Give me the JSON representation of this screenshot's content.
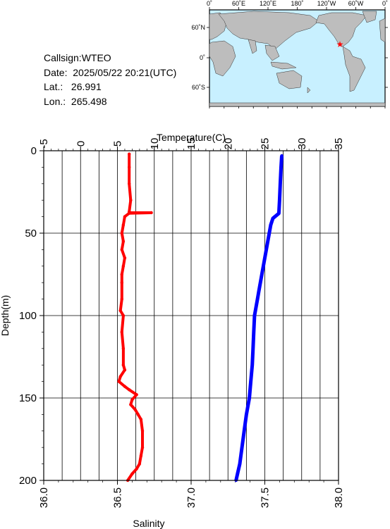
{
  "info": {
    "callsign": "Callsign:WTEO",
    "date_label": "Date:",
    "date_value": "2025/05/22 20:21(UTC)",
    "lat_label": "Lat.:",
    "lat_value": "26.991",
    "lon_label": "Lon.:",
    "lon_value": "265.498"
  },
  "map": {
    "top_labels": [
      "0˚",
      "60˚E",
      "120˚E",
      "180˚",
      "120˚W",
      "60˚W",
      "0˚"
    ],
    "left_labels": [
      "60˚N",
      "0˚",
      "60˚S"
    ],
    "ocean_color": "#c8f0ff",
    "land_color": "#bdbdbd",
    "marker_color": "#ff0000",
    "marker": "star-icon"
  },
  "chart_data": {
    "type": "line",
    "top_axis": {
      "label": "Temperature(C)",
      "range": [
        -5,
        35
      ],
      "ticks": [
        "-5",
        "0",
        "5",
        "10",
        "15",
        "20",
        "25",
        "30",
        "35"
      ]
    },
    "bottom_axis": {
      "label": "Salinity",
      "range": [
        36.0,
        38.0
      ],
      "ticks": [
        "36.0",
        "36.5",
        "37.0",
        "37.5",
        "38.0"
      ]
    },
    "left_axis": {
      "label": "Depth(m)",
      "range": [
        0,
        200
      ],
      "inverted": true,
      "ticks": [
        "0",
        "50",
        "100",
        "150",
        "200"
      ]
    },
    "grid": true,
    "series": [
      {
        "key": "temperature",
        "color": "#0000ff",
        "axis": "top",
        "points": [
          [
            27.3,
            3
          ],
          [
            27.2,
            10
          ],
          [
            27.1,
            20
          ],
          [
            27.0,
            30
          ],
          [
            26.9,
            38
          ],
          [
            26.1,
            41
          ],
          [
            25.8,
            45
          ],
          [
            25.6,
            50
          ],
          [
            25.4,
            55
          ],
          [
            25.2,
            60
          ],
          [
            25.0,
            65
          ],
          [
            24.8,
            70
          ],
          [
            24.6,
            75
          ],
          [
            24.4,
            80
          ],
          [
            24.2,
            85
          ],
          [
            24.0,
            90
          ],
          [
            23.8,
            95
          ],
          [
            23.6,
            100
          ],
          [
            23.5,
            110
          ],
          [
            23.4,
            120
          ],
          [
            23.3,
            130
          ],
          [
            23.1,
            140
          ],
          [
            22.9,
            150
          ],
          [
            22.7,
            155
          ],
          [
            22.5,
            160
          ],
          [
            22.2,
            170
          ],
          [
            21.9,
            180
          ],
          [
            21.6,
            190
          ],
          [
            21.3,
            196
          ],
          [
            21.1,
            200
          ]
        ]
      },
      {
        "key": "salinity",
        "color": "#ff0000",
        "axis": "bottom",
        "points": [
          [
            36.58,
            2
          ],
          [
            36.58,
            10
          ],
          [
            36.58,
            20
          ],
          [
            36.59,
            30
          ],
          [
            36.58,
            37
          ],
          [
            36.58,
            37.6
          ],
          [
            36.73,
            37.6
          ],
          [
            36.58,
            37.9
          ],
          [
            36.55,
            40
          ],
          [
            36.54,
            45
          ],
          [
            36.53,
            50
          ],
          [
            36.54,
            55
          ],
          [
            36.53,
            60
          ],
          [
            36.55,
            65
          ],
          [
            36.54,
            70
          ],
          [
            36.53,
            75
          ],
          [
            36.53,
            80
          ],
          [
            36.53,
            90
          ],
          [
            36.52,
            97
          ],
          [
            36.54,
            100
          ],
          [
            36.53,
            110
          ],
          [
            36.54,
            120
          ],
          [
            36.54,
            130
          ],
          [
            36.55,
            133
          ],
          [
            36.52,
            137
          ],
          [
            36.51,
            140
          ],
          [
            36.55,
            143
          ],
          [
            36.58,
            145
          ],
          [
            36.63,
            148
          ],
          [
            36.6,
            151
          ],
          [
            36.59,
            154
          ],
          [
            36.62,
            157
          ],
          [
            36.64,
            160
          ],
          [
            36.66,
            163
          ],
          [
            36.67,
            170
          ],
          [
            36.67,
            180
          ],
          [
            36.66,
            185
          ],
          [
            36.65,
            190
          ],
          [
            36.63,
            193
          ],
          [
            36.6,
            196
          ],
          [
            36.57,
            200
          ]
        ]
      }
    ]
  }
}
